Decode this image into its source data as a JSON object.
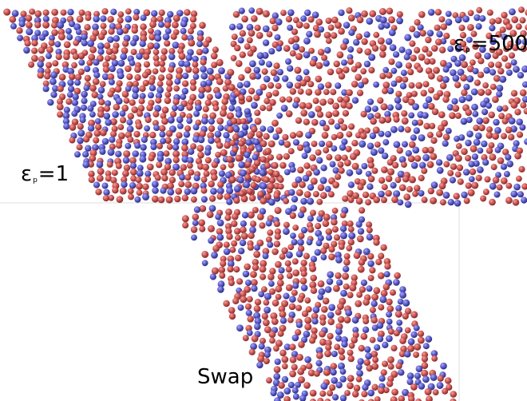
{
  "panels": [
    {
      "id": "a",
      "label_symbol": "ε",
      "label_subscript": "p",
      "label_value": "=1",
      "pattern": "mixed"
    },
    {
      "id": "b",
      "label_symbol": "ε",
      "label_subscript": "p",
      "label_value": "=500",
      "pattern": "chains"
    },
    {
      "id": "c",
      "label_text": "Swap",
      "pattern": "chains"
    }
  ],
  "colors": {
    "red_particle": "#c8504f",
    "red_highlight": "#f2a29a",
    "red_shadow": "#7a2a2a",
    "blue_particle": "#5858c8",
    "blue_highlight": "#a8a8f5",
    "blue_shadow": "#2a2a78",
    "divider": "#dddddd"
  }
}
